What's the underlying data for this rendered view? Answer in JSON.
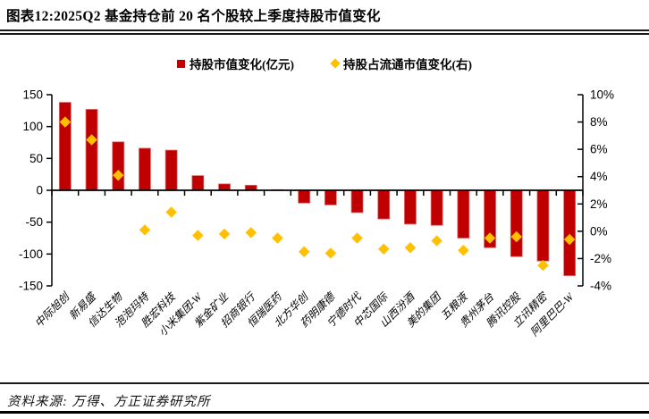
{
  "title": "图表12:2025Q2 基金持仓前 20 名个股较上季度持股市值变化",
  "legend": {
    "items": [
      {
        "label": "持股市值变化(亿元)",
        "marker": "square",
        "color": "#C00000"
      },
      {
        "label": "持股占流通市值变化(右)",
        "marker": "diamond",
        "color": "#FFC000"
      }
    ]
  },
  "footer": {
    "source": "资料来源:  万得、方正证券研究所"
  },
  "colors": {
    "bar": "#C00000",
    "bar_edge": "#E06A6A",
    "marker": "#FFC000",
    "axis": "#000000"
  },
  "chart_data": {
    "type": "bar",
    "subtype": "dual-axis bar + diamond scatter",
    "title": "2025Q2 基金持仓前 20 名个股较上季度持股市值变化",
    "xlabel": "",
    "ylabel_left": "持股市值变化(亿元)",
    "ylabel_right": "持股占流通市值变化(%)",
    "grid": false,
    "legend_position": "top",
    "categories": [
      "中际旭创",
      "新易盛",
      "信达生物",
      "泡泡玛特",
      "胜宏科技",
      "小米集团-W",
      "紫金矿业",
      "招商银行",
      "恒瑞医药",
      "北方华创",
      "药明康德",
      "宁德时代",
      "中芯国际",
      "山西汾酒",
      "美的集团",
      "五粮液",
      "贵州茅台",
      "腾讯控股",
      "立讯精密",
      "阿里巴巴-W"
    ],
    "series": [
      {
        "name": "持股市值变化(亿元)",
        "type": "bar",
        "axis": "left",
        "color": "#C00000",
        "values": [
          138,
          127,
          76,
          66,
          63,
          23,
          10,
          8,
          1,
          -20,
          -23,
          -35,
          -45,
          -53,
          -55,
          -75,
          -90,
          -104,
          -111,
          -134
        ]
      },
      {
        "name": "持股占流通市值变化(右)",
        "type": "scatter",
        "marker": "diamond",
        "axis": "right",
        "color": "#FFC000",
        "values": [
          8.0,
          6.7,
          4.1,
          0.1,
          1.4,
          -0.3,
          -0.2,
          -0.1,
          -0.5,
          -1.5,
          -1.6,
          -0.5,
          -1.3,
          -1.2,
          -0.7,
          -1.4,
          -0.5,
          -0.4,
          -2.5,
          -0.6
        ]
      }
    ],
    "left_axis": {
      "min": -150,
      "max": 150,
      "ticks": [
        150,
        100,
        50,
        0,
        -50,
        -100,
        -150
      ]
    },
    "right_axis": {
      "min": -4,
      "max": 10,
      "ticks": [
        "10%",
        "8%",
        "6%",
        "4%",
        "2%",
        "0%",
        "-2%",
        "-4%"
      ]
    }
  }
}
